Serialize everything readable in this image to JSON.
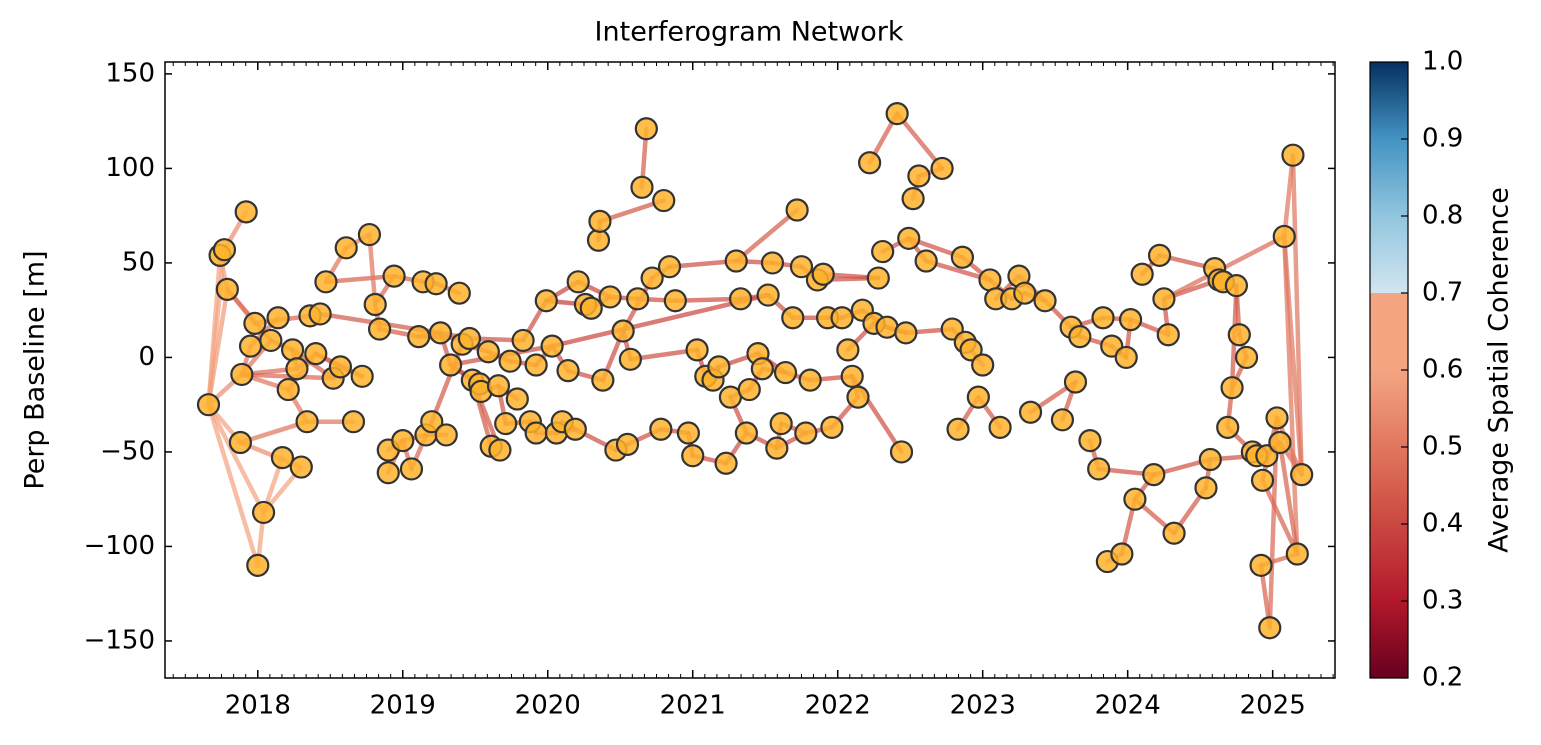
{
  "chart_data": {
    "type": "network",
    "title": "Interferogram Network",
    "y_label": "Perp Baseline [m]",
    "xlim": [
      2017.36,
      2025.43
    ],
    "xticks": [
      2018,
      2019,
      2020,
      2021,
      2022,
      2023,
      2024,
      2025
    ],
    "ylim": [
      -169.6,
      156.3
    ],
    "yticks": [
      {
        "value": -150,
        "label": "−150"
      },
      {
        "value": -100,
        "label": "−100"
      },
      {
        "value": -50,
        "label": "−50"
      },
      0,
      50,
      100,
      150
    ],
    "node_color": "#ffb32c",
    "node_edge_color": "#333333",
    "nodes": {
      "x": [
        2017.66,
        2017.74,
        2017.77,
        2017.92,
        2017.79,
        2017.88,
        2017.89,
        2017.95,
        2017.98,
        2018.09,
        2018.14,
        2018.0,
        2018.04,
        2018.17,
        2018.3,
        2018.21,
        2018.24,
        2018.27,
        2018.34,
        2018.36,
        2018.43,
        2018.4,
        2018.47,
        2018.52,
        2018.57,
        2018.61,
        2018.66,
        2018.72,
        2018.77,
        2018.81,
        2018.84,
        2018.9,
        2018.9,
        2018.94,
        2019.0,
        2019.06,
        2019.11,
        2019.14,
        2019.23,
        2019.16,
        2019.2,
        2019.26,
        2019.3,
        2019.33,
        2019.39,
        2019.41,
        2019.46,
        2019.48,
        2019.53,
        2019.54,
        2019.59,
        2019.61,
        2019.67,
        2019.66,
        2019.71,
        2019.74,
        2019.79,
        2019.83,
        2019.88,
        2019.92,
        2019.92,
        2019.99,
        2020.03,
        2020.06,
        2020.1,
        2020.14,
        2020.19,
        2020.21,
        2020.26,
        2020.3,
        2020.35,
        2020.36,
        2020.38,
        2020.43,
        2020.47,
        2020.52,
        2020.55,
        2020.57,
        2020.62,
        2020.65,
        2020.68,
        2020.72,
        2020.78,
        2020.8,
        2020.84,
        2020.88,
        2020.97,
        2021.0,
        2021.03,
        2021.09,
        2021.14,
        2021.18,
        2021.23,
        2021.26,
        2021.3,
        2021.33,
        2021.37,
        2021.39,
        2021.45,
        2021.48,
        2021.52,
        2021.55,
        2021.58,
        2021.61,
        2021.64,
        2021.69,
        2021.72,
        2021.75,
        2021.78,
        2021.81,
        2021.86,
        2021.9,
        2021.93,
        2021.96,
        2022.03,
        2022.07,
        2022.1,
        2022.14,
        2022.17,
        2022.22,
        2022.25,
        2022.28,
        2022.31,
        2022.34,
        2022.41,
        2022.44,
        2022.47,
        2022.49,
        2022.52,
        2022.56,
        2022.61,
        2022.72,
        2022.79,
        2022.83,
        2022.86,
        2022.88,
        2022.92,
        2022.97,
        2023.0,
        2023.05,
        2023.09,
        2023.12,
        2023.2,
        2023.25,
        2023.29,
        2023.33,
        2023.43,
        2023.55,
        2023.61,
        2023.64,
        2023.67,
        2023.74,
        2023.8,
        2023.83,
        2023.86,
        2023.89,
        2023.96,
        2023.99,
        2024.02,
        2024.05,
        2024.1,
        2024.18,
        2024.22,
        2024.25,
        2024.28,
        2024.32,
        2024.54,
        2024.57,
        2024.6,
        2024.63,
        2024.66,
        2024.69,
        2024.72,
        2024.75,
        2024.77,
        2024.82,
        2024.86,
        2024.89,
        2024.92,
        2024.93,
        2024.96,
        2024.98,
        2025.03,
        2025.05,
        2025.08,
        2025.14,
        2025.17,
        2025.2
      ],
      "y": [
        -25,
        54,
        57,
        77,
        36,
        -45,
        -9,
        6,
        18,
        9,
        21,
        -110,
        -82,
        -53,
        -58,
        -17,
        4,
        -6,
        -34,
        22,
        23,
        2,
        40,
        -11,
        -5,
        58,
        -34,
        -10,
        65,
        28,
        15,
        -49,
        -61,
        43,
        -44,
        -59,
        11,
        40,
        39,
        -41,
        -34,
        13,
        -41,
        -4,
        34,
        7,
        10,
        -12,
        -14,
        -18,
        3,
        -47,
        -49,
        -15,
        -35,
        -2,
        -22,
        9,
        -34,
        -40,
        -4,
        30,
        6,
        -40,
        -34,
        -7,
        -38,
        40,
        28,
        26,
        62,
        72,
        -12,
        32,
        -49,
        14,
        -46,
        -1,
        31,
        90,
        121,
        42,
        -38,
        83,
        48,
        30,
        -40,
        -52,
        4,
        -10,
        -12,
        -5,
        -56,
        -21,
        51,
        31,
        -40,
        -17,
        2,
        -6,
        33,
        50,
        -48,
        -35,
        -8,
        21,
        78,
        48,
        -40,
        -12,
        41,
        44,
        21,
        -37,
        21,
        4,
        -10,
        -21,
        25,
        103,
        18,
        42,
        56,
        16,
        129,
        -50,
        13,
        63,
        84,
        96,
        51,
        100,
        15,
        -38,
        53,
        8,
        4,
        -21,
        -4,
        41,
        31,
        -37,
        31,
        43,
        34,
        -29,
        30,
        -33,
        16,
        -13,
        11,
        -44,
        -59,
        21,
        -108,
        6,
        -104,
        0,
        20,
        -75,
        44,
        -62,
        54,
        31,
        12,
        -93,
        -69,
        -54,
        47,
        41,
        40,
        -37,
        -16,
        38,
        12,
        0,
        -50,
        -52,
        -110,
        -65,
        -52,
        -143,
        -32,
        -45,
        64,
        107,
        -104,
        -62
      ]
    },
    "edges": {
      "from": [
        0,
        0,
        0,
        0,
        0,
        0,
        0,
        2,
        1,
        11,
        12,
        12,
        5,
        5,
        4,
        4,
        6,
        6,
        6,
        6,
        6,
        7,
        8,
        9,
        15,
        15,
        16,
        16,
        17,
        18,
        19,
        20,
        21,
        21,
        23,
        24,
        22,
        25,
        25,
        28,
        29,
        29,
        30,
        33,
        37,
        38,
        31,
        32,
        34,
        34,
        35,
        39,
        40,
        36,
        36,
        41,
        41,
        43,
        43,
        45,
        46,
        47,
        47,
        48,
        49,
        50,
        53,
        54,
        55,
        56,
        57,
        58,
        59,
        60,
        61,
        61,
        62,
        63,
        64,
        65,
        66,
        67,
        68,
        69,
        70,
        71,
        73,
        72,
        74,
        75,
        76,
        77,
        78,
        79,
        81,
        81,
        82,
        84,
        85,
        86,
        87,
        88,
        89,
        90,
        91,
        92,
        93,
        93,
        94,
        95,
        96,
        97,
        98,
        99,
        100,
        101,
        102,
        103,
        104,
        105,
        94,
        107,
        108,
        109,
        110,
        112,
        113,
        114,
        115,
        116,
        118,
        111,
        110,
        120,
        123,
        119,
        124,
        122,
        127,
        127,
        128,
        129,
        130,
        132,
        126,
        133,
        137,
        135,
        136,
        134,
        139,
        140,
        142,
        143,
        144,
        145,
        147,
        146,
        148,
        148,
        151,
        152,
        153,
        150,
        155,
        154,
        156,
        157,
        158,
        159,
        160,
        162,
        163,
        163,
        161,
        165,
        165,
        166,
        167,
        168,
        169,
        170,
        171,
        171,
        172,
        173,
        174,
        175,
        176,
        177,
        178,
        181,
        179,
        180,
        182,
        183,
        184,
        184,
        184,
        185,
        186,
        186,
        183,
        178,
        62,
        43,
        125,
        108
      ],
      "to": [
        1,
        2,
        4,
        6,
        5,
        11,
        12,
        3,
        4,
        12,
        13,
        14,
        14,
        18,
        8,
        9,
        15,
        9,
        17,
        23,
        7,
        10,
        19,
        16,
        21,
        18,
        17,
        23,
        21,
        26,
        20,
        41,
        24,
        27,
        24,
        27,
        33,
        28,
        22,
        29,
        33,
        30,
        36,
        37,
        38,
        44,
        34,
        34,
        35,
        39,
        40,
        42,
        45,
        46,
        41,
        43,
        46,
        48,
        47,
        50,
        57,
        51,
        52,
        49,
        53,
        55,
        54,
        58,
        60,
        53,
        61,
        59,
        63,
        62,
        68,
        67,
        65,
        66,
        66,
        72,
        74,
        73,
        69,
        73,
        71,
        83,
        78,
        75,
        76,
        77,
        82,
        88,
        85,
        80,
        84,
        75,
        86,
        94,
        95,
        87,
        92,
        89,
        91,
        91,
        98,
        96,
        96,
        97,
        101,
        100,
        102,
        99,
        104,
        104,
        105,
        107,
        103,
        108,
        109,
        112,
        106,
        110,
        113,
        116,
        111,
        114,
        117,
        118,
        120,
        117,
        123,
        121,
        121,
        126,
        126,
        124,
        131,
        127,
        130,
        134,
        129,
        131,
        139,
        135,
        132,
        137,
        141,
        136,
        138,
        139,
        142,
        143,
        144,
        146,
        146,
        149,
        149,
        148,
        150,
        153,
        152,
        161,
        158,
        155,
        157,
        156,
        159,
        158,
        164,
        161,
        162,
        168,
        164,
        169,
        167,
        166,
        159,
        167,
        177,
        170,
        173,
        173,
        172,
        176,
        173,
        174,
        175,
        172,
        177,
        180,
        181,
        182,
        182,
        183,
        187,
        187,
        185,
        187,
        163,
        187,
        179,
        184,
        186,
        186,
        100,
        62,
        116,
        102
      ],
      "coherence": [
        0.62,
        0.6,
        0.58,
        0.55,
        0.6,
        0.63,
        0.62,
        0.55,
        0.6,
        0.6,
        0.62,
        0.63,
        0.55,
        0.5,
        0.5,
        0.48,
        0.5,
        0.5,
        0.48,
        0.47,
        0.5,
        0.48,
        0.47,
        0.46,
        0.48,
        0.5,
        0.47,
        0.46,
        0.47,
        0.5,
        0.45,
        0.44,
        0.46,
        0.46,
        0.47,
        0.46,
        0.46,
        0.52,
        0.5,
        0.5,
        0.47,
        0.46,
        0.45,
        0.46,
        0.45,
        0.45,
        0.5,
        0.5,
        0.48,
        0.46,
        0.47,
        0.45,
        0.44,
        0.44,
        0.44,
        0.43,
        0.44,
        0.43,
        0.43,
        0.44,
        0.43,
        0.44,
        0.44,
        0.43,
        0.43,
        0.43,
        0.43,
        0.42,
        0.43,
        0.43,
        0.42,
        0.42,
        0.42,
        0.42,
        0.38,
        0.4,
        0.42,
        0.42,
        0.42,
        0.42,
        0.42,
        0.4,
        0.38,
        0.4,
        0.43,
        0.44,
        0.41,
        0.42,
        0.42,
        0.42,
        0.42,
        0.42,
        0.42,
        0.45,
        0.43,
        0.43,
        0.42,
        0.42,
        0.42,
        0.42,
        0.42,
        0.4,
        0.38,
        0.38,
        0.4,
        0.42,
        0.42,
        0.42,
        0.42,
        0.42,
        0.42,
        0.4,
        0.4,
        0.4,
        0.42,
        0.42,
        0.42,
        0.42,
        0.42,
        0.42,
        0.45,
        0.42,
        0.42,
        0.42,
        0.42,
        0.42,
        0.42,
        0.42,
        0.42,
        0.42,
        0.42,
        0.42,
        0.42,
        0.42,
        0.42,
        0.45,
        0.45,
        0.43,
        0.43,
        0.43,
        0.45,
        0.45,
        0.43,
        0.43,
        0.42,
        0.44,
        0.44,
        0.43,
        0.43,
        0.43,
        0.43,
        0.43,
        0.43,
        0.43,
        0.43,
        0.44,
        0.44,
        0.43,
        0.43,
        0.43,
        0.44,
        0.43,
        0.43,
        0.43,
        0.43,
        0.45,
        0.44,
        0.43,
        0.43,
        0.44,
        0.44,
        0.43,
        0.43,
        0.43,
        0.43,
        0.44,
        0.44,
        0.44,
        0.43,
        0.43,
        0.43,
        0.43,
        0.44,
        0.44,
        0.44,
        0.44,
        0.44,
        0.44,
        0.43,
        0.43,
        0.46,
        0.47,
        0.46,
        0.44,
        0.48,
        0.47,
        0.5,
        0.5,
        0.48,
        0.5,
        0.46,
        0.5,
        0.46,
        0.46,
        0.4,
        0.42,
        0.42,
        0.42
      ]
    },
    "colorbar": {
      "label": "Average Spatial Coherence",
      "lim": [
        0.2,
        1.0
      ],
      "ticks": [
        0.2,
        0.3,
        0.4,
        0.5,
        0.6,
        0.7,
        0.8,
        0.9,
        {
          "value": 1.0,
          "label": "1.0"
        }
      ]
    }
  }
}
